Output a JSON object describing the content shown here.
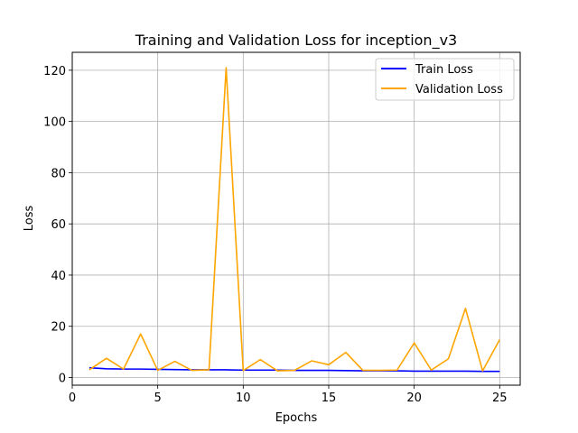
{
  "chart_data": {
    "type": "line",
    "title": "Training and Validation Loss for inception_v3",
    "xlabel": "Epochs",
    "ylabel": "Loss",
    "xlim": [
      0,
      26.2
    ],
    "ylim": [
      -3,
      127
    ],
    "xticks": [
      0,
      5,
      10,
      15,
      20,
      25
    ],
    "yticks": [
      0,
      20,
      40,
      60,
      80,
      100,
      120
    ],
    "grid": true,
    "legend_position": "top-right",
    "x": [
      1,
      2,
      3,
      4,
      5,
      6,
      7,
      8,
      9,
      10,
      11,
      12,
      13,
      14,
      15,
      16,
      17,
      18,
      19,
      20,
      21,
      22,
      23,
      24,
      25
    ],
    "series": [
      {
        "name": "Train Loss",
        "color": "#0000ff",
        "values": [
          3.8,
          3.4,
          3.3,
          3.3,
          3.2,
          3.1,
          3.0,
          3.0,
          3.0,
          2.9,
          2.9,
          2.9,
          2.8,
          2.8,
          2.8,
          2.7,
          2.6,
          2.6,
          2.6,
          2.5,
          2.5,
          2.5,
          2.5,
          2.4,
          2.4
        ]
      },
      {
        "name": "Validation Loss",
        "color": "#ffa500",
        "values": [
          3.0,
          7.5,
          3.3,
          17.0,
          2.8,
          6.3,
          2.8,
          3.0,
          121.0,
          2.7,
          7.0,
          2.6,
          2.8,
          6.5,
          5.0,
          9.8,
          2.8,
          2.8,
          2.9,
          13.5,
          2.9,
          7.3,
          27.0,
          2.6,
          14.8
        ]
      }
    ]
  }
}
